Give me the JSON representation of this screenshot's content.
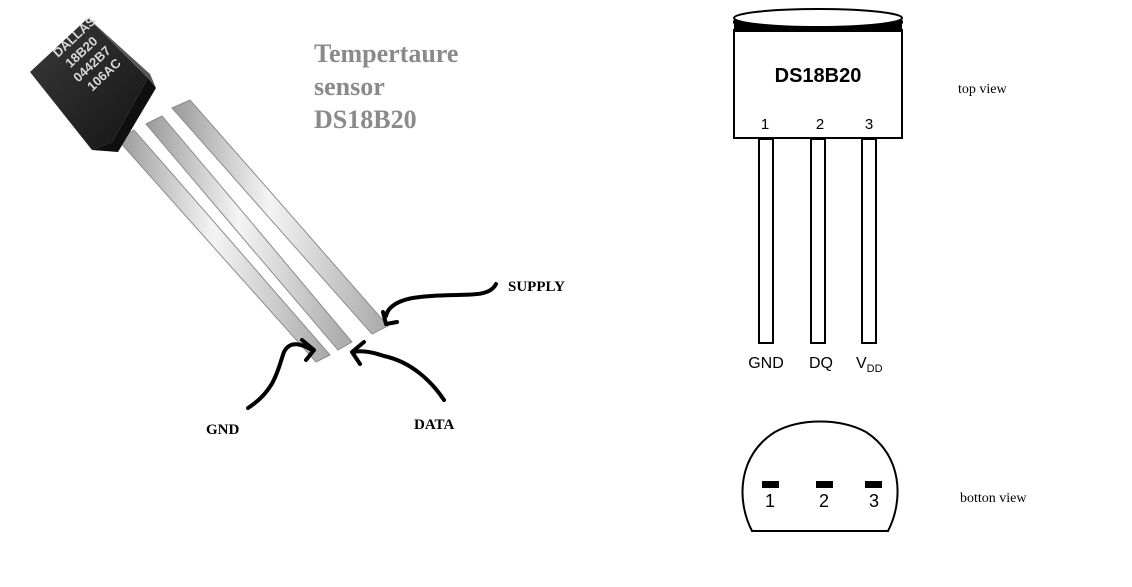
{
  "photo": {
    "chip_marking": [
      "DALLAS",
      "18B20",
      "0442B7",
      "106AC"
    ],
    "title_lines": [
      "Tempertaure",
      "sensor",
      "DS18B20"
    ],
    "labels": {
      "supply": "SUPPLY",
      "gnd": "GND",
      "data": "DATA"
    }
  },
  "top_view": {
    "part_name": "DS18B20",
    "pin_numbers": [
      "1",
      "2",
      "3"
    ],
    "pin_names": [
      "GND",
      "DQ",
      "V"
    ],
    "vdd_subscript": "DD",
    "caption": "top view"
  },
  "bottom_view": {
    "pin_numbers": [
      "1",
      "2",
      "3"
    ],
    "caption": "botton view"
  },
  "colors": {
    "title_gray": "#8a8a8a",
    "ink": "#000000",
    "chip_body": "#2a2a2a",
    "leg": "#cfcfcf"
  }
}
